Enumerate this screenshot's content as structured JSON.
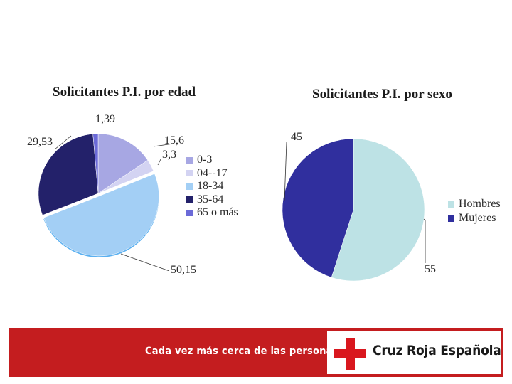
{
  "chart_data": [
    {
      "type": "pie",
      "title": "Solicitantes P.I. por edad",
      "categories": [
        "0-3",
        "04--17",
        "18-34",
        "35-64",
        "65 o más"
      ],
      "values": [
        15.6,
        3.3,
        50.15,
        29.53,
        1.39
      ],
      "data_labels": [
        "15,6",
        "3,3",
        "50,15",
        "29,53",
        "1,39"
      ],
      "colors": [
        "#a7a7e3",
        "#d3d3f2",
        "#a3cff5",
        "#23216a",
        "#6b6ad8"
      ],
      "legend_position": "right"
    },
    {
      "type": "pie",
      "title": "Solicitantes P.I. por sexo",
      "categories": [
        "Hombres",
        "Mujeres"
      ],
      "values": [
        55,
        45
      ],
      "data_labels": [
        "55",
        "45"
      ],
      "colors": [
        "#bde2e5",
        "#302f9e"
      ],
      "legend_position": "right"
    }
  ],
  "footer": {
    "slogan": "Cada vez más cerca de las personas",
    "brand": "Cruz Roja Española"
  }
}
